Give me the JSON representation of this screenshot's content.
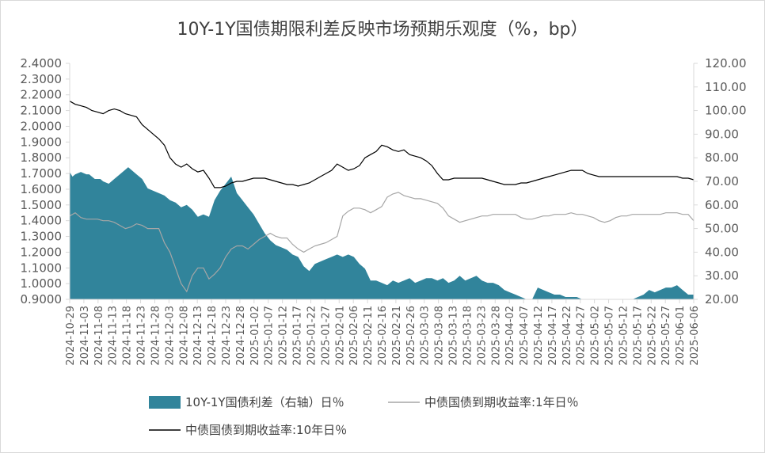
{
  "chart_data": {
    "type": "area+line",
    "title": "10Y-1Y国债期限利差反映市场预期乐观度（%，bp）",
    "y_left": {
      "min": 0.9,
      "max": 2.4,
      "step": 0.1,
      "ticks": [
        "0.9000",
        "1.0000",
        "1.1000",
        "1.2000",
        "1.3000",
        "1.4000",
        "1.5000",
        "1.6000",
        "1.7000",
        "1.8000",
        "1.9000",
        "2.0000",
        "2.1000",
        "2.2000",
        "2.3000",
        "2.4000"
      ]
    },
    "y_right": {
      "min": 20,
      "max": 120,
      "step": 10,
      "ticks": [
        "20.00",
        "30.00",
        "40.00",
        "50.00",
        "60.00",
        "70.00",
        "80.00",
        "90.00",
        "100.00",
        "110.00",
        "120.00"
      ]
    },
    "x_ticks": [
      "2024-10-29",
      "2024-11-03",
      "2024-11-08",
      "2024-11-13",
      "2024-11-18",
      "2024-11-23",
      "2024-11-28",
      "2024-12-03",
      "2024-12-08",
      "2024-12-13",
      "2024-12-18",
      "2024-12-23",
      "2024-12-28",
      "2025-01-02",
      "2025-01-07",
      "2025-01-12",
      "2025-01-17",
      "2025-01-22",
      "2025-01-27",
      "2025-02-01",
      "2025-02-06",
      "2025-02-11",
      "2025-02-16",
      "2025-02-21",
      "2025-02-26",
      "2025-03-03",
      "2025-03-08",
      "2025-03-13",
      "2025-03-18",
      "2025-03-23",
      "2025-03-28",
      "2025-04-02",
      "2025-04-07",
      "2025-04-12",
      "2025-04-17",
      "2025-04-22",
      "2025-04-27",
      "2025-05-02",
      "2025-05-07",
      "2025-05-12",
      "2025-05-17",
      "2025-05-22",
      "2025-05-27",
      "2025-06-01",
      "2025-06-06"
    ],
    "series": [
      {
        "name": "10Y-1Y国债利差（右轴）日%",
        "kind": "area",
        "axis": "right",
        "color": "#31849b",
        "x": [
          0,
          1,
          2,
          4,
          6,
          7,
          9,
          11,
          12,
          14,
          16,
          18,
          20,
          21,
          22,
          24,
          26,
          28,
          30,
          32,
          34,
          36,
          38,
          40,
          42,
          44,
          46,
          48,
          50,
          52,
          54,
          56,
          58,
          60,
          62,
          64,
          66,
          68,
          70,
          72,
          74,
          76,
          78,
          80,
          82,
          84,
          86,
          88,
          90,
          92,
          94,
          96,
          98,
          100,
          102,
          104,
          106,
          108,
          110,
          112,
          114,
          116,
          118,
          120,
          122,
          124,
          126,
          128,
          130,
          132,
          134,
          136,
          138,
          140,
          142,
          144,
          146,
          148,
          150,
          152,
          154,
          156,
          158,
          160,
          162,
          164,
          166,
          168,
          170,
          172,
          174,
          176,
          178,
          180,
          182,
          184,
          186,
          188,
          190,
          192,
          194,
          196,
          198,
          200,
          202,
          204,
          206,
          208,
          210,
          212,
          214,
          216,
          218,
          220,
          222,
          224
        ],
        "values": [
          74,
          72,
          73,
          74,
          73,
          73,
          71,
          71,
          70,
          69,
          71,
          73,
          75,
          76,
          75,
          73,
          71,
          67,
          66,
          65,
          64,
          62,
          61,
          59,
          60,
          58,
          55,
          56,
          55,
          62,
          66,
          69,
          72,
          65,
          62,
          59,
          56,
          52,
          48,
          45,
          43,
          42,
          41,
          39,
          38,
          34,
          32,
          35,
          36,
          37,
          38,
          39,
          38,
          39,
          38,
          35,
          33,
          28,
          28,
          27,
          26,
          28,
          27,
          28,
          29,
          27,
          28,
          29,
          29,
          28,
          29,
          27,
          28,
          30,
          28,
          29,
          30,
          28,
          27,
          27,
          26,
          24,
          23,
          22,
          21,
          20,
          20,
          25,
          24,
          23,
          22,
          22,
          21,
          21,
          21,
          20,
          20,
          20,
          20,
          20,
          20,
          20,
          20,
          20,
          20,
          21,
          22,
          24,
          23,
          24,
          25,
          25,
          26,
          24,
          22,
          22
        ]
      },
      {
        "name": "中债国债到期收益率:1年日%",
        "kind": "line",
        "axis": "left",
        "color": "#a6a6a6",
        "x": [
          0,
          2,
          4,
          6,
          8,
          10,
          12,
          14,
          16,
          18,
          20,
          22,
          24,
          26,
          28,
          30,
          32,
          34,
          36,
          38,
          40,
          42,
          44,
          46,
          48,
          50,
          52,
          54,
          56,
          58,
          60,
          62,
          64,
          66,
          68,
          70,
          72,
          74,
          76,
          78,
          80,
          82,
          84,
          86,
          88,
          90,
          92,
          94,
          96,
          98,
          100,
          102,
          104,
          106,
          108,
          110,
          112,
          114,
          116,
          118,
          120,
          122,
          124,
          126,
          128,
          130,
          132,
          134,
          136,
          138,
          140,
          142,
          144,
          146,
          148,
          150,
          152,
          154,
          156,
          158,
          160,
          162,
          164,
          166,
          168,
          170,
          172,
          174,
          176,
          178,
          180,
          182,
          184,
          186,
          188,
          190,
          192,
          194,
          196,
          198,
          200,
          202,
          204,
          206,
          208,
          210,
          212,
          214,
          216,
          218,
          220,
          222,
          224
        ],
        "values": [
          1.43,
          1.45,
          1.42,
          1.41,
          1.41,
          1.41,
          1.4,
          1.4,
          1.39,
          1.37,
          1.35,
          1.36,
          1.38,
          1.37,
          1.35,
          1.35,
          1.35,
          1.26,
          1.2,
          1.1,
          1.0,
          0.95,
          1.05,
          1.1,
          1.1,
          1.03,
          1.06,
          1.1,
          1.17,
          1.22,
          1.24,
          1.24,
          1.22,
          1.25,
          1.28,
          1.3,
          1.32,
          1.3,
          1.29,
          1.29,
          1.25,
          1.22,
          1.2,
          1.22,
          1.24,
          1.25,
          1.26,
          1.28,
          1.3,
          1.43,
          1.46,
          1.48,
          1.48,
          1.47,
          1.45,
          1.47,
          1.49,
          1.55,
          1.57,
          1.58,
          1.56,
          1.55,
          1.54,
          1.54,
          1.53,
          1.52,
          1.51,
          1.48,
          1.43,
          1.41,
          1.39,
          1.4,
          1.41,
          1.42,
          1.43,
          1.43,
          1.44,
          1.44,
          1.44,
          1.44,
          1.44,
          1.42,
          1.41,
          1.41,
          1.42,
          1.43,
          1.43,
          1.44,
          1.44,
          1.44,
          1.45,
          1.44,
          1.44,
          1.43,
          1.42,
          1.4,
          1.39,
          1.4,
          1.42,
          1.43,
          1.43,
          1.44,
          1.44,
          1.44,
          1.44,
          1.44,
          1.44,
          1.45,
          1.45,
          1.45,
          1.44,
          1.44,
          1.4
        ]
      },
      {
        "name": "中债国债到期收益率:10年日%",
        "kind": "line",
        "axis": "left",
        "color": "#000000",
        "x": [
          0,
          2,
          4,
          6,
          8,
          10,
          12,
          14,
          16,
          18,
          20,
          22,
          24,
          26,
          28,
          30,
          32,
          34,
          36,
          38,
          40,
          42,
          44,
          46,
          48,
          50,
          52,
          54,
          56,
          58,
          60,
          62,
          64,
          66,
          68,
          70,
          72,
          74,
          76,
          78,
          80,
          82,
          84,
          86,
          88,
          90,
          92,
          94,
          96,
          98,
          100,
          102,
          104,
          106,
          108,
          110,
          112,
          114,
          116,
          118,
          120,
          122,
          124,
          126,
          128,
          130,
          132,
          134,
          136,
          138,
          140,
          142,
          144,
          146,
          148,
          150,
          152,
          154,
          156,
          158,
          160,
          162,
          164,
          166,
          168,
          170,
          172,
          174,
          176,
          178,
          180,
          182,
          184,
          186,
          188,
          190,
          192,
          194,
          196,
          198,
          200,
          202,
          204,
          206,
          208,
          210,
          212,
          214,
          216,
          218,
          220,
          222,
          224
        ],
        "values": [
          2.16,
          2.14,
          2.13,
          2.12,
          2.1,
          2.09,
          2.08,
          2.1,
          2.11,
          2.1,
          2.08,
          2.07,
          2.06,
          2.01,
          1.98,
          1.95,
          1.92,
          1.88,
          1.8,
          1.76,
          1.74,
          1.76,
          1.73,
          1.71,
          1.72,
          1.67,
          1.61,
          1.61,
          1.62,
          1.64,
          1.65,
          1.65,
          1.66,
          1.67,
          1.67,
          1.67,
          1.66,
          1.65,
          1.64,
          1.63,
          1.63,
          1.62,
          1.63,
          1.64,
          1.66,
          1.68,
          1.7,
          1.72,
          1.76,
          1.74,
          1.72,
          1.73,
          1.75,
          1.8,
          1.82,
          1.84,
          1.88,
          1.87,
          1.85,
          1.84,
          1.85,
          1.82,
          1.81,
          1.8,
          1.78,
          1.75,
          1.7,
          1.66,
          1.66,
          1.67,
          1.67,
          1.67,
          1.67,
          1.67,
          1.67,
          1.66,
          1.65,
          1.64,
          1.63,
          1.63,
          1.63,
          1.64,
          1.64,
          1.65,
          1.66,
          1.67,
          1.68,
          1.69,
          1.7,
          1.71,
          1.72,
          1.72,
          1.72,
          1.7,
          1.69,
          1.68,
          1.68,
          1.68,
          1.68,
          1.68,
          1.68,
          1.68,
          1.68,
          1.68,
          1.68,
          1.68,
          1.68,
          1.68,
          1.68,
          1.68,
          1.67,
          1.67,
          1.66
        ]
      }
    ],
    "legend": [
      {
        "label": "10Y-1Y国债利差（右轴）日％",
        "kind": "area",
        "color": "#31849b"
      },
      {
        "label": "中债国债到期收益率:1年日％",
        "kind": "line",
        "color": "#a6a6a6"
      },
      {
        "label": "中债国债到期收益率:10年日％",
        "kind": "line",
        "color": "#000000"
      }
    ],
    "legend_placement": "bottom",
    "x_count": 225,
    "grid": false
  }
}
